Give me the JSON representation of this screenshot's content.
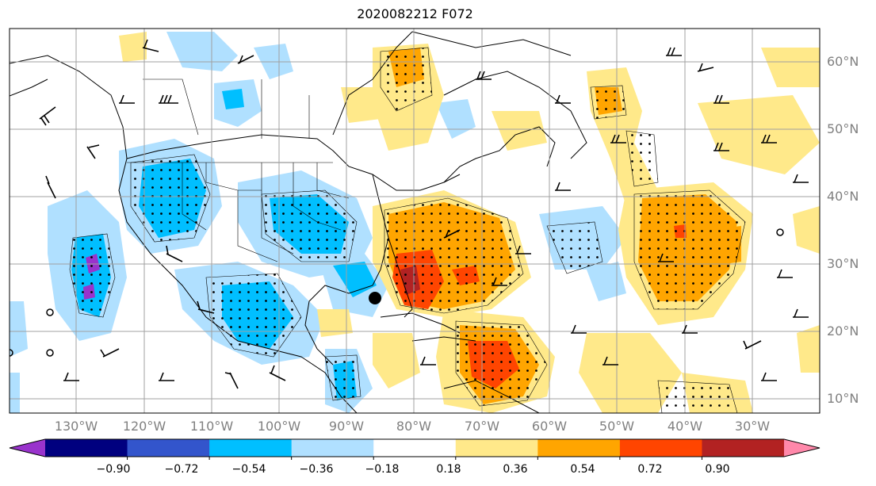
{
  "title": "2020082212 F072",
  "lat_labels": [
    "60°N",
    "50°N",
    "40°N",
    "30°N",
    "20°N",
    "10°N"
  ],
  "lon_labels": [
    "130°W",
    "120°W",
    "110°W",
    "100°W",
    "90°W",
    "80°W",
    "70°W",
    "60°W",
    "50°W",
    "40°W",
    "30°W"
  ],
  "colorbar": {
    "tick_labels": [
      "−0.90",
      "−0.72",
      "−0.54",
      "−0.36",
      "−0.18",
      "0.18",
      "0.36",
      "0.54",
      "0.72",
      "0.90"
    ],
    "colors": [
      "#9933cc",
      "#00007f",
      "#3355cc",
      "#00bfff",
      "#b0e0ff",
      "#ffffff",
      "#ffe98a",
      "#ffa500",
      "#ff4500",
      "#b22222",
      "#ff88aa"
    ]
  },
  "colors": {
    "land_outline": "#000000",
    "grid": "#a0a0a0",
    "stipple": "#000000"
  }
}
